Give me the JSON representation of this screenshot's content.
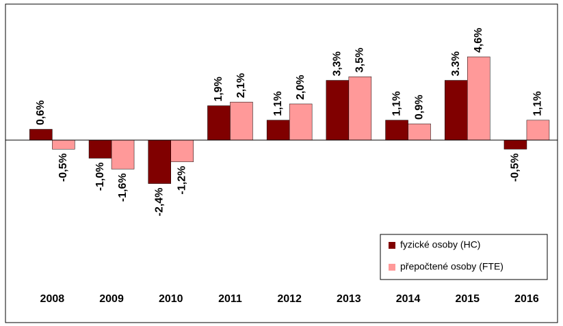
{
  "chart_data": {
    "type": "bar",
    "categories": [
      "2008",
      "2009",
      "2010",
      "2011",
      "2012",
      "2013",
      "2014",
      "2015",
      "2016"
    ],
    "series": [
      {
        "name": "fyzické osoby (HC)",
        "color": "#800000",
        "values": [
          0.6,
          -1.0,
          -2.4,
          1.9,
          1.1,
          3.3,
          1.1,
          3.3,
          -0.5
        ],
        "value_labels": [
          "0,6%",
          "-1,0%",
          "-2,4%",
          "1,9%",
          "1,1%",
          "3,3%",
          "1,1%",
          "3.3%",
          "-0,5%"
        ]
      },
      {
        "name": "přepočtené osoby (FTE)",
        "color": "#ff9999",
        "values": [
          -0.5,
          -1.6,
          -1.2,
          2.1,
          2.0,
          3.5,
          0.9,
          4.6,
          1.1
        ],
        "value_labels": [
          "-0,5%",
          "-1,6%",
          "-1,2%",
          "2,1%",
          "2,0%",
          "3,5%",
          "0,9%",
          "4,6%",
          "1,1%"
        ]
      }
    ],
    "legend": "lower right"
  }
}
